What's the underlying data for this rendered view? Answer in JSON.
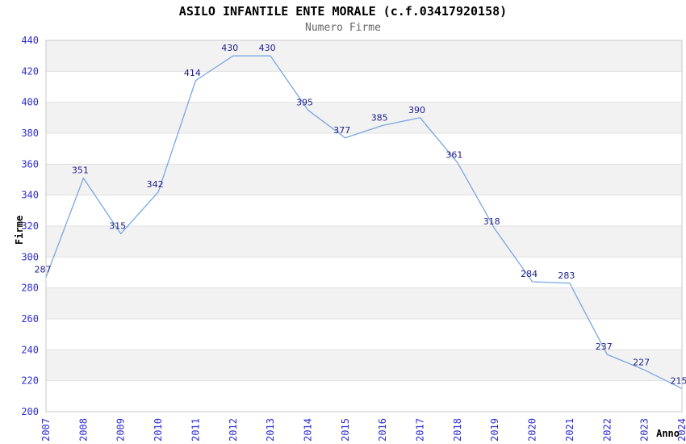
{
  "chart_data": {
    "type": "line",
    "title": "ASILO INFANTILE ENTE MORALE (c.f.03417920158)",
    "subtitle": "Numero Firme",
    "xlabel": "Anno",
    "ylabel": "Firme",
    "categories": [
      "2007",
      "2008",
      "2009",
      "2010",
      "2011",
      "2012",
      "2013",
      "2014",
      "2015",
      "2016",
      "2017",
      "2018",
      "2019",
      "2020",
      "2021",
      "2022",
      "2023",
      "2024"
    ],
    "series": [
      {
        "name": "Numero Firme",
        "values": [
          287,
          351,
          315,
          342,
          414,
          430,
          430,
          395,
          377,
          385,
          390,
          361,
          318,
          284,
          283,
          237,
          227,
          215
        ]
      }
    ],
    "ylim": [
      200,
      440
    ],
    "ytick_step": 20,
    "grid": "horizontal-gridlines-with-alternating-bands",
    "legend": "none",
    "data_labels_visible": true,
    "colors": {
      "line": "#7aa7e0",
      "data_label": "#1c1c8c",
      "tick_label": "#2e2ecf",
      "band_fill": "#f2f2f2",
      "gridline": "#e0e0e0",
      "plot_border": "#c9c9c9",
      "title": "#000000",
      "subtitle": "#666666",
      "axis_title": "#000000"
    }
  }
}
